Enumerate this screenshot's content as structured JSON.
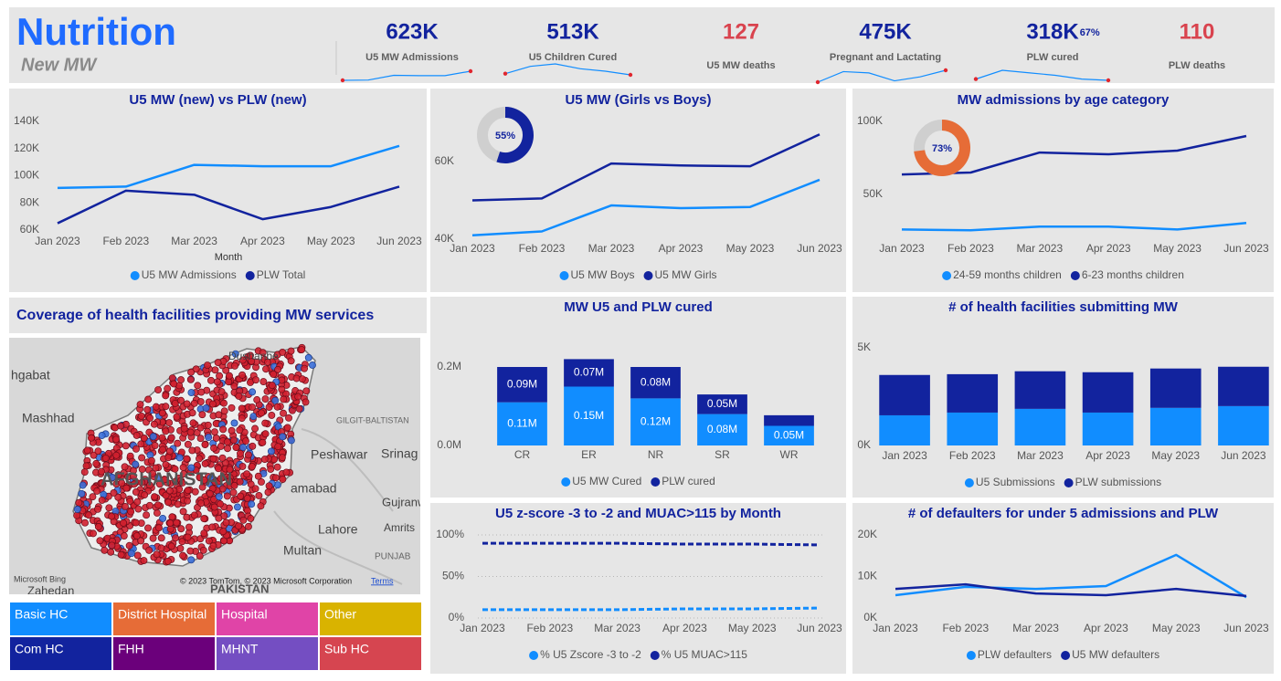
{
  "header": {
    "title": "Nutrition",
    "subtitle": "New MW"
  },
  "kpis": [
    {
      "value": "623K",
      "label": "U5 MW Admissions",
      "color": "#12239e",
      "trend": [
        91,
        92,
        108,
        107,
        107,
        122
      ]
    },
    {
      "value": "513K",
      "label": "U5 Children Cured",
      "color": "#12239e",
      "trend": [
        80,
        86,
        88,
        84,
        82,
        79
      ]
    },
    {
      "value": "127",
      "label": "U5 MW deaths",
      "color": "#d9434e"
    },
    {
      "value": "475K",
      "label": "Pregnant and Lactating",
      "color": "#12239e",
      "trend": [
        65,
        89,
        86,
        68,
        77,
        92
      ]
    },
    {
      "value": "318K",
      "sub_value": "67%",
      "label": "PLW cured",
      "color": "#12239e",
      "trend": [
        70,
        84,
        80,
        76,
        70,
        68
      ]
    },
    {
      "value": "110",
      "label": "PLW deaths",
      "color": "#d9434e"
    }
  ],
  "chart_data": [
    {
      "type": "line",
      "title": "U5 MW (new) vs PLW (new)",
      "x_label": "Month",
      "categories": [
        "Jan 2023",
        "Feb 2023",
        "Mar 2023",
        "Apr 2023",
        "May 2023",
        "Jun 2023"
      ],
      "series": [
        {
          "name": "U5 MW Admissions",
          "color": "#118dff",
          "values": [
            91000,
            92000,
            108000,
            107000,
            107000,
            122000
          ]
        },
        {
          "name": "PLW Total",
          "color": "#12239e",
          "values": [
            65000,
            89000,
            86000,
            68000,
            77000,
            92000
          ]
        }
      ],
      "ylim": [
        60000,
        140000
      ],
      "yticks": [
        {
          "value": 60000,
          "label": "60K"
        },
        {
          "value": 80000,
          "label": "80K"
        },
        {
          "value": 100000,
          "label": "100K"
        },
        {
          "value": 120000,
          "label": "120K"
        },
        {
          "value": 140000,
          "label": "140K"
        }
      ],
      "grid": false
    },
    {
      "type": "line",
      "title": "U5 MW (Girls vs Boys)",
      "categories": [
        "Jan 2023",
        "Feb 2023",
        "Mar 2023",
        "Apr 2023",
        "May 2023",
        "Jun 2023"
      ],
      "series": [
        {
          "name": "U5 MW Boys",
          "color": "#118dff",
          "values": [
            41000,
            42000,
            48700,
            48000,
            48300,
            55300
          ]
        },
        {
          "name": "U5 MW Girls",
          "color": "#12239e",
          "values": [
            50000,
            50500,
            59500,
            59000,
            58800,
            67000
          ]
        }
      ],
      "ylim": [
        40000,
        68000
      ],
      "yticks": [
        {
          "value": 40000,
          "label": "40K"
        },
        {
          "value": 60000,
          "label": "60K"
        }
      ],
      "donut": {
        "value": 55,
        "label": "55%",
        "color": "#12239e"
      },
      "grid": false
    },
    {
      "type": "line",
      "title": "MW admissions by age category",
      "categories": [
        "Jan 2023",
        "Feb 2023",
        "Mar 2023",
        "Apr 2023",
        "May 2023",
        "Jun 2023"
      ],
      "series": [
        {
          "name": "24-59 months children",
          "color": "#118dff",
          "values": [
            26000,
            25500,
            28000,
            28000,
            26000,
            30500
          ]
        },
        {
          "name": "6-23 months children",
          "color": "#12239e",
          "values": [
            63700,
            65000,
            78700,
            77500,
            80000,
            90000
          ]
        }
      ],
      "ylim": [
        20000,
        105000
      ],
      "yticks": [
        {
          "value": 50000,
          "label": "50K"
        },
        {
          "value": 100000,
          "label": "100K"
        }
      ],
      "donut": {
        "value": 73,
        "label": "73%",
        "color": "#e66c37"
      },
      "grid": false
    },
    {
      "type": "bar",
      "stacked": true,
      "title": "MW U5 and PLW cured",
      "categories": [
        "CR",
        "ER",
        "NR",
        "SR",
        "WR"
      ],
      "series": [
        {
          "name": "U5 MW Cured",
          "color": "#118dff",
          "values": [
            110000,
            150000,
            120000,
            80000,
            50000
          ],
          "value_labels": [
            "0.11M",
            "0.15M",
            "0.12M",
            "0.08M",
            "0.05M"
          ]
        },
        {
          "name": "PLW cured",
          "color": "#12239e",
          "values": [
            90000,
            70000,
            80000,
            50000,
            27000
          ],
          "value_labels": [
            "0.09M",
            "0.07M",
            "0.08M",
            "0.05M",
            null
          ]
        }
      ],
      "ylim": [
        0,
        250000
      ],
      "yticks": [
        {
          "value": 0,
          "label": "0.0M"
        },
        {
          "value": 200000,
          "label": "0.2M"
        }
      ],
      "grid": false
    },
    {
      "type": "bar",
      "stacked": true,
      "title": "# of health facilities submitting MW",
      "categories": [
        "Jan 2023",
        "Feb 2023",
        "Mar 2023",
        "Apr 2023",
        "May 2023",
        "Jun 2023"
      ],
      "series": [
        {
          "name": "U5 Submissions",
          "color": "#118dff",
          "values": [
            1540,
            1680,
            1870,
            1680,
            1920,
            2010
          ]
        },
        {
          "name": "PLW submissions",
          "color": "#12239e",
          "values": [
            2060,
            1960,
            1920,
            2060,
            2010,
            2010
          ]
        }
      ],
      "ylim": [
        0,
        5500
      ],
      "yticks": [
        {
          "value": 0,
          "label": "0K"
        },
        {
          "value": 5000,
          "label": "5K"
        }
      ],
      "grid": false
    },
    {
      "type": "line",
      "dashed": true,
      "title": "U5 z-score -3 to -2 and MUAC>115 by Month",
      "categories": [
        "Jan 2023",
        "Feb 2023",
        "Mar 2023",
        "Apr 2023",
        "May 2023",
        "Jun 2023"
      ],
      "series": [
        {
          "name": "% U5 Zscore -3 to -2",
          "color": "#118dff",
          "values": [
            10,
            10,
            10,
            11,
            11,
            12
          ]
        },
        {
          "name": "% U5 MUAC>115",
          "color": "#12239e",
          "values": [
            90,
            90,
            90,
            89,
            89,
            88
          ]
        }
      ],
      "ylim": [
        0,
        100
      ],
      "yticks": [
        {
          "value": 0,
          "label": "0%"
        },
        {
          "value": 50,
          "label": "50%"
        },
        {
          "value": 100,
          "label": "100%"
        }
      ],
      "grid": true
    },
    {
      "type": "line",
      "title": "# of defaulters for under 5 admissions and PLW",
      "categories": [
        "Jan 2023",
        "Feb 2023",
        "Mar 2023",
        "Apr 2023",
        "May 2023",
        "Jun 2023"
      ],
      "series": [
        {
          "name": "PLW defaulters",
          "color": "#118dff",
          "values": [
            5500,
            7500,
            7000,
            7700,
            15200,
            5000
          ]
        },
        {
          "name": "U5 MW defaulters",
          "color": "#12239e",
          "values": [
            7000,
            8100,
            5900,
            5500,
            7000,
            5300
          ]
        }
      ],
      "ylim": [
        0,
        20000
      ],
      "yticks": [
        {
          "value": 0,
          "label": "0K"
        },
        {
          "value": 10000,
          "label": "10K"
        },
        {
          "value": 20000,
          "label": "20K"
        }
      ],
      "grid": false
    }
  ],
  "map": {
    "title": "Coverage of health facilities providing MW services",
    "labels": [
      "hgabat",
      "Mashhad",
      "Dushanbe",
      "GILGIT-BALTISTAN",
      "Peshawar",
      "Srinag",
      "AFGHANISTAN",
      "amabad",
      "Gujranw",
      "Lahore",
      "Amrits",
      "Multan",
      "PUNJAB",
      "Zahedan",
      "PAKISTAN"
    ],
    "brand": "Microsoft Bing",
    "attribution": "© 2023 TomTom, © 2023 Microsoft Corporation",
    "terms": "Terms"
  },
  "facility_types": [
    {
      "name": "Basic HC",
      "color": "#118dff"
    },
    {
      "name": "District Hospital",
      "color": "#e66c37"
    },
    {
      "name": "Hospital",
      "color": "#e044a7"
    },
    {
      "name": "Other",
      "color": "#d9b300"
    },
    {
      "name": "Com HC",
      "color": "#12239e"
    },
    {
      "name": "FHH",
      "color": "#6b007b"
    },
    {
      "name": "MHNT",
      "color": "#744ec2"
    },
    {
      "name": "Sub HC",
      "color": "#d64550"
    }
  ]
}
